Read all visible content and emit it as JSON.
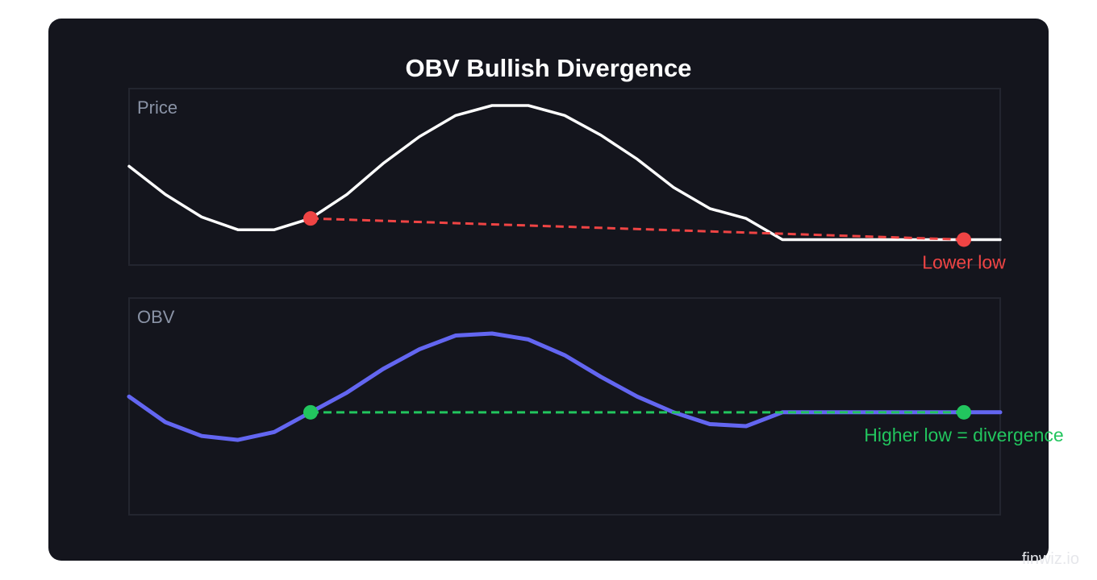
{
  "title": "OBV Bullish Divergence",
  "watermark": "finwiz.io",
  "colors": {
    "card_bg": "#14151d",
    "panel_border": "#23252f",
    "price_line": "#ffffff",
    "obv_line": "#6366f1",
    "lower_low": "#ef4444",
    "higher_low": "#22c55e",
    "panel_label": "#8a93a6"
  },
  "chart_data": [
    {
      "type": "line",
      "panel_label": "Price",
      "x": [
        0,
        1,
        2,
        3,
        4,
        5,
        6,
        7,
        8,
        9,
        10,
        11,
        12,
        13,
        14,
        15,
        16,
        17,
        18,
        19,
        20,
        21,
        22,
        23,
        24
      ],
      "series": [
        {
          "values": [
            70,
            50,
            34,
            25,
            25,
            33,
            50,
            72,
            91,
            106,
            113,
            113,
            106,
            92,
            75,
            55,
            40,
            33,
            18,
            18,
            18,
            18,
            18,
            18,
            18
          ]
        }
      ],
      "ylim": [
        0,
        125
      ],
      "trendline": {
        "from": {
          "x": 5,
          "y": 33
        },
        "to": {
          "x": 23,
          "y": 18
        },
        "style": "dashed"
      },
      "annotation": "Lower low"
    },
    {
      "type": "line",
      "panel_label": "OBV",
      "x": [
        0,
        1,
        2,
        3,
        4,
        5,
        6,
        7,
        8,
        9,
        10,
        11,
        12,
        13,
        14,
        15,
        16,
        17,
        18,
        19,
        20,
        21,
        22,
        23,
        24
      ],
      "series": [
        {
          "values": [
            60,
            47,
            40,
            38,
            42,
            52,
            62,
            74,
            84,
            91,
            92,
            89,
            81,
            70,
            60,
            52,
            46,
            45,
            52,
            52,
            52,
            52,
            52,
            52,
            52
          ]
        }
      ],
      "ylim": [
        0,
        110
      ],
      "trendline": {
        "from": {
          "x": 5,
          "y": 52
        },
        "to": {
          "x": 23,
          "y": 52
        },
        "style": "dashed"
      },
      "annotation": "Higher low = divergence"
    }
  ]
}
